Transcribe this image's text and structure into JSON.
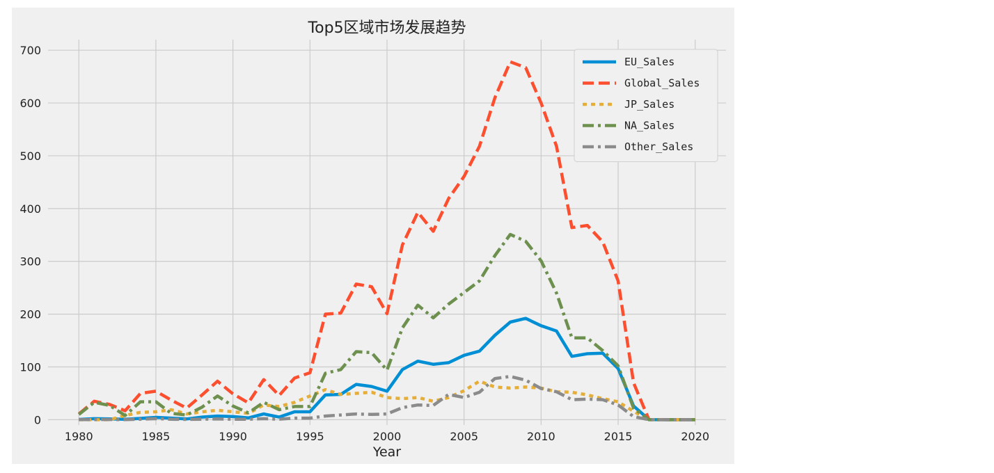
{
  "chart_data": {
    "type": "line",
    "title": "Top5区域市场发展趋势",
    "xlabel": "Year",
    "ylabel": "",
    "xlim": [
      1978,
      2022
    ],
    "ylim": [
      -10,
      720
    ],
    "x_ticks": [
      1980,
      1985,
      1990,
      1995,
      2000,
      2005,
      2010,
      2015,
      2020
    ],
    "y_ticks": [
      0,
      100,
      200,
      300,
      400,
      500,
      600,
      700
    ],
    "grid": true,
    "legend_position": "top-right",
    "x": [
      1980,
      1981,
      1982,
      1983,
      1984,
      1985,
      1986,
      1987,
      1988,
      1989,
      1990,
      1991,
      1992,
      1993,
      1994,
      1995,
      1996,
      1997,
      1998,
      1999,
      2000,
      2001,
      2002,
      2003,
      2004,
      2005,
      2006,
      2007,
      2008,
      2009,
      2010,
      2011,
      2012,
      2013,
      2014,
      2015,
      2016,
      2017,
      2018,
      2019,
      2020
    ],
    "series": [
      {
        "name": "EU_Sales",
        "color": "#008fd5",
        "dash": "solid",
        "values": [
          0.5,
          2,
          1.5,
          0.8,
          2.5,
          4.5,
          3,
          1.5,
          5,
          7,
          6,
          3.5,
          11,
          5,
          15,
          15,
          47,
          48,
          67,
          63,
          54,
          95,
          111,
          105,
          108,
          122,
          130,
          160,
          185,
          192,
          178,
          168,
          120,
          125,
          126,
          97,
          26,
          0.3,
          0,
          0,
          0
        ]
      },
      {
        "name": "Global_Sales",
        "color": "#fc4f30",
        "dash": "dashed",
        "values": [
          11,
          35,
          29,
          17,
          50,
          54,
          37,
          22,
          47,
          73,
          49,
          32,
          76,
          46,
          79,
          89,
          200,
          202,
          257,
          252,
          201,
          331,
          393,
          357,
          419,
          461,
          518,
          610,
          678,
          667,
          600,
          518,
          364,
          368,
          337,
          263,
          70,
          0.1,
          0.1,
          0,
          0
        ]
      },
      {
        "name": "JP_Sales",
        "color": "#e5ae38",
        "dash": "dotted",
        "values": [
          0,
          0,
          0,
          8,
          14,
          15,
          19,
          11,
          15,
          18,
          15,
          12,
          28,
          25,
          33,
          45,
          57,
          48,
          50,
          52,
          42,
          40,
          42,
          35,
          42,
          55,
          73,
          62,
          60,
          62,
          60,
          53,
          52,
          47,
          40,
          34,
          16,
          0,
          0,
          0,
          0
        ]
      },
      {
        "name": "NA_Sales",
        "color": "#6d904f",
        "dash": "dashdot",
        "values": [
          10,
          33,
          27,
          8,
          34,
          34,
          12,
          9,
          24,
          45,
          26,
          13,
          33,
          19,
          25,
          25,
          88,
          95,
          129,
          127,
          94,
          174,
          217,
          193,
          219,
          241,
          263,
          311,
          351,
          338,
          301,
          240,
          155,
          155,
          131,
          102,
          22,
          0,
          0,
          0,
          0
        ]
      },
      {
        "name": "Other_Sales",
        "color": "#8b8b8b",
        "dash": "dashdot",
        "values": [
          0.1,
          0.3,
          0.4,
          0.2,
          1,
          2,
          1,
          0.5,
          1,
          1.5,
          1,
          1,
          2,
          1,
          3,
          3,
          7,
          9,
          11,
          10,
          11,
          23,
          28,
          27,
          48,
          42,
          52,
          78,
          82,
          75,
          59,
          53,
          38,
          39,
          38,
          28,
          6,
          0,
          0,
          0,
          0
        ]
      }
    ]
  }
}
